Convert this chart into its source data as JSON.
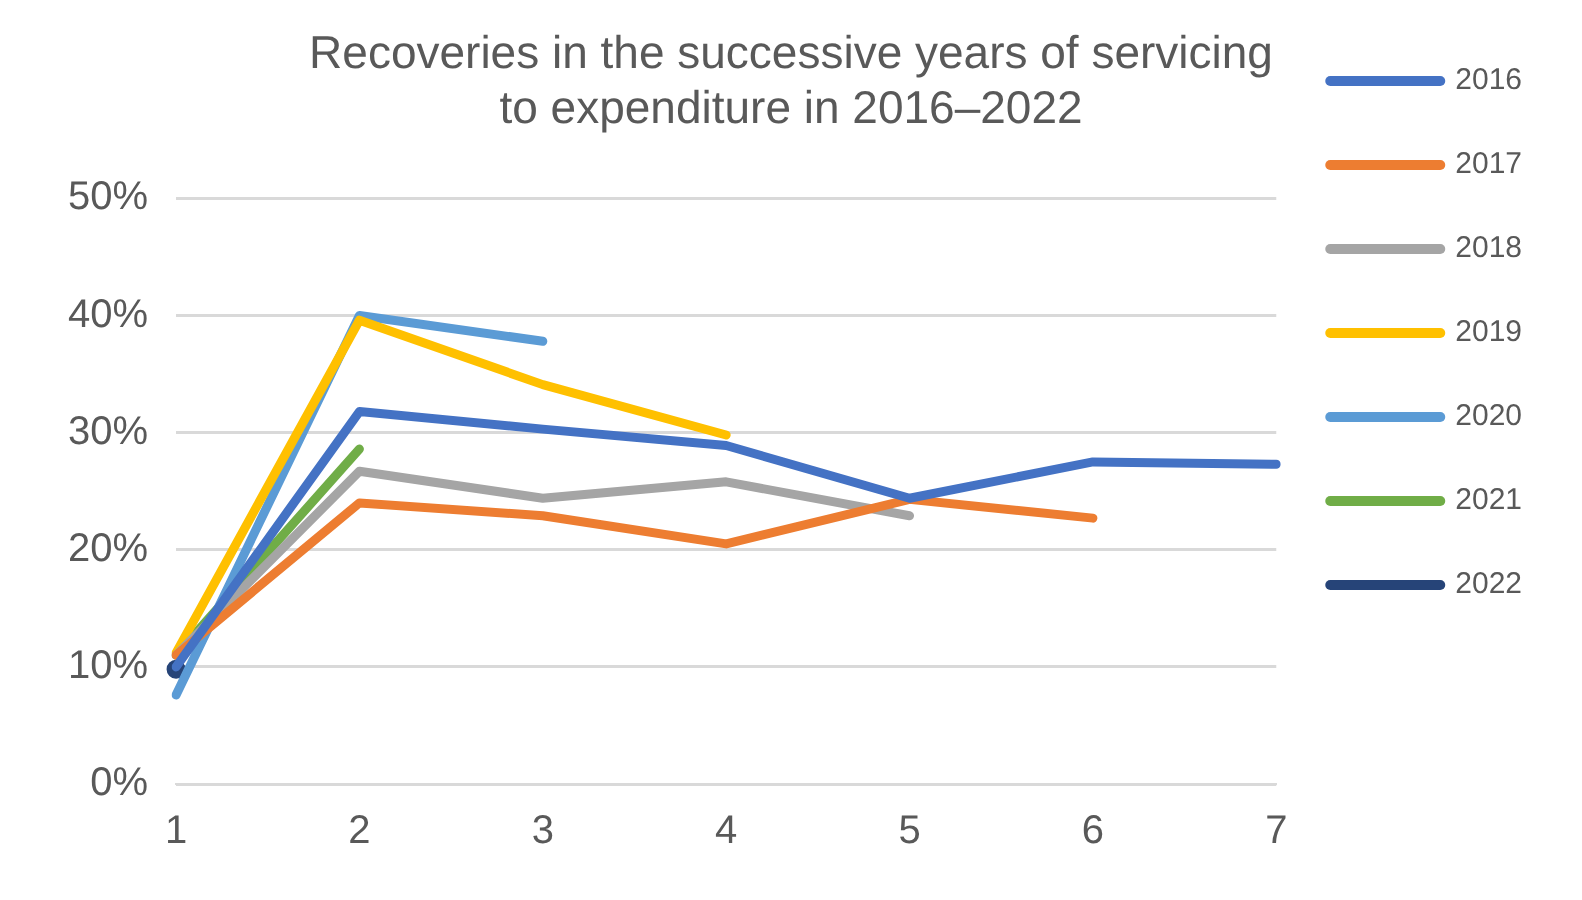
{
  "chart_data": {
    "type": "line",
    "title": [
      "Recoveries in the successive years of servicing",
      "to expenditure in 2016–2022"
    ],
    "categories": [
      "1",
      "2",
      "3",
      "4",
      "5",
      "6",
      "7"
    ],
    "series": [
      {
        "name": "2016",
        "color": "#4472c4",
        "values": [
          10.0,
          31.8,
          30.3,
          28.9,
          24.4,
          27.5,
          27.3
        ]
      },
      {
        "name": "2017",
        "color": "#ed7d31",
        "values": [
          11.0,
          24.0,
          22.9,
          20.5,
          24.3,
          22.7,
          null
        ]
      },
      {
        "name": "2018",
        "color": "#a5a5a5",
        "values": [
          11.0,
          26.7,
          24.4,
          25.8,
          22.9,
          null,
          null
        ]
      },
      {
        "name": "2019",
        "color": "#ffc000",
        "values": [
          11.2,
          39.6,
          34.1,
          29.8,
          null,
          null,
          null
        ]
      },
      {
        "name": "2020",
        "color": "#5b9bd5",
        "values": [
          7.6,
          40.0,
          37.8,
          null,
          null,
          null,
          null
        ]
      },
      {
        "name": "2021",
        "color": "#70ad47",
        "values": [
          11.0,
          28.6,
          null,
          null,
          null,
          null,
          null
        ]
      },
      {
        "name": "2022",
        "color": "#264478",
        "marker": "circle",
        "values": [
          9.8,
          null,
          null,
          null,
          null,
          null,
          null
        ]
      }
    ],
    "ylim": [
      0,
      50
    ],
    "yticks": [
      {
        "value": 0,
        "label": "0%"
      },
      {
        "value": 10,
        "label": "10%"
      },
      {
        "value": 20,
        "label": "20%"
      },
      {
        "value": 30,
        "label": "30%"
      },
      {
        "value": 40,
        "label": "40%"
      },
      {
        "value": 50,
        "label": "50%"
      }
    ],
    "grid": "y",
    "legend": "right",
    "marker": "none",
    "line_style": "solid"
  }
}
